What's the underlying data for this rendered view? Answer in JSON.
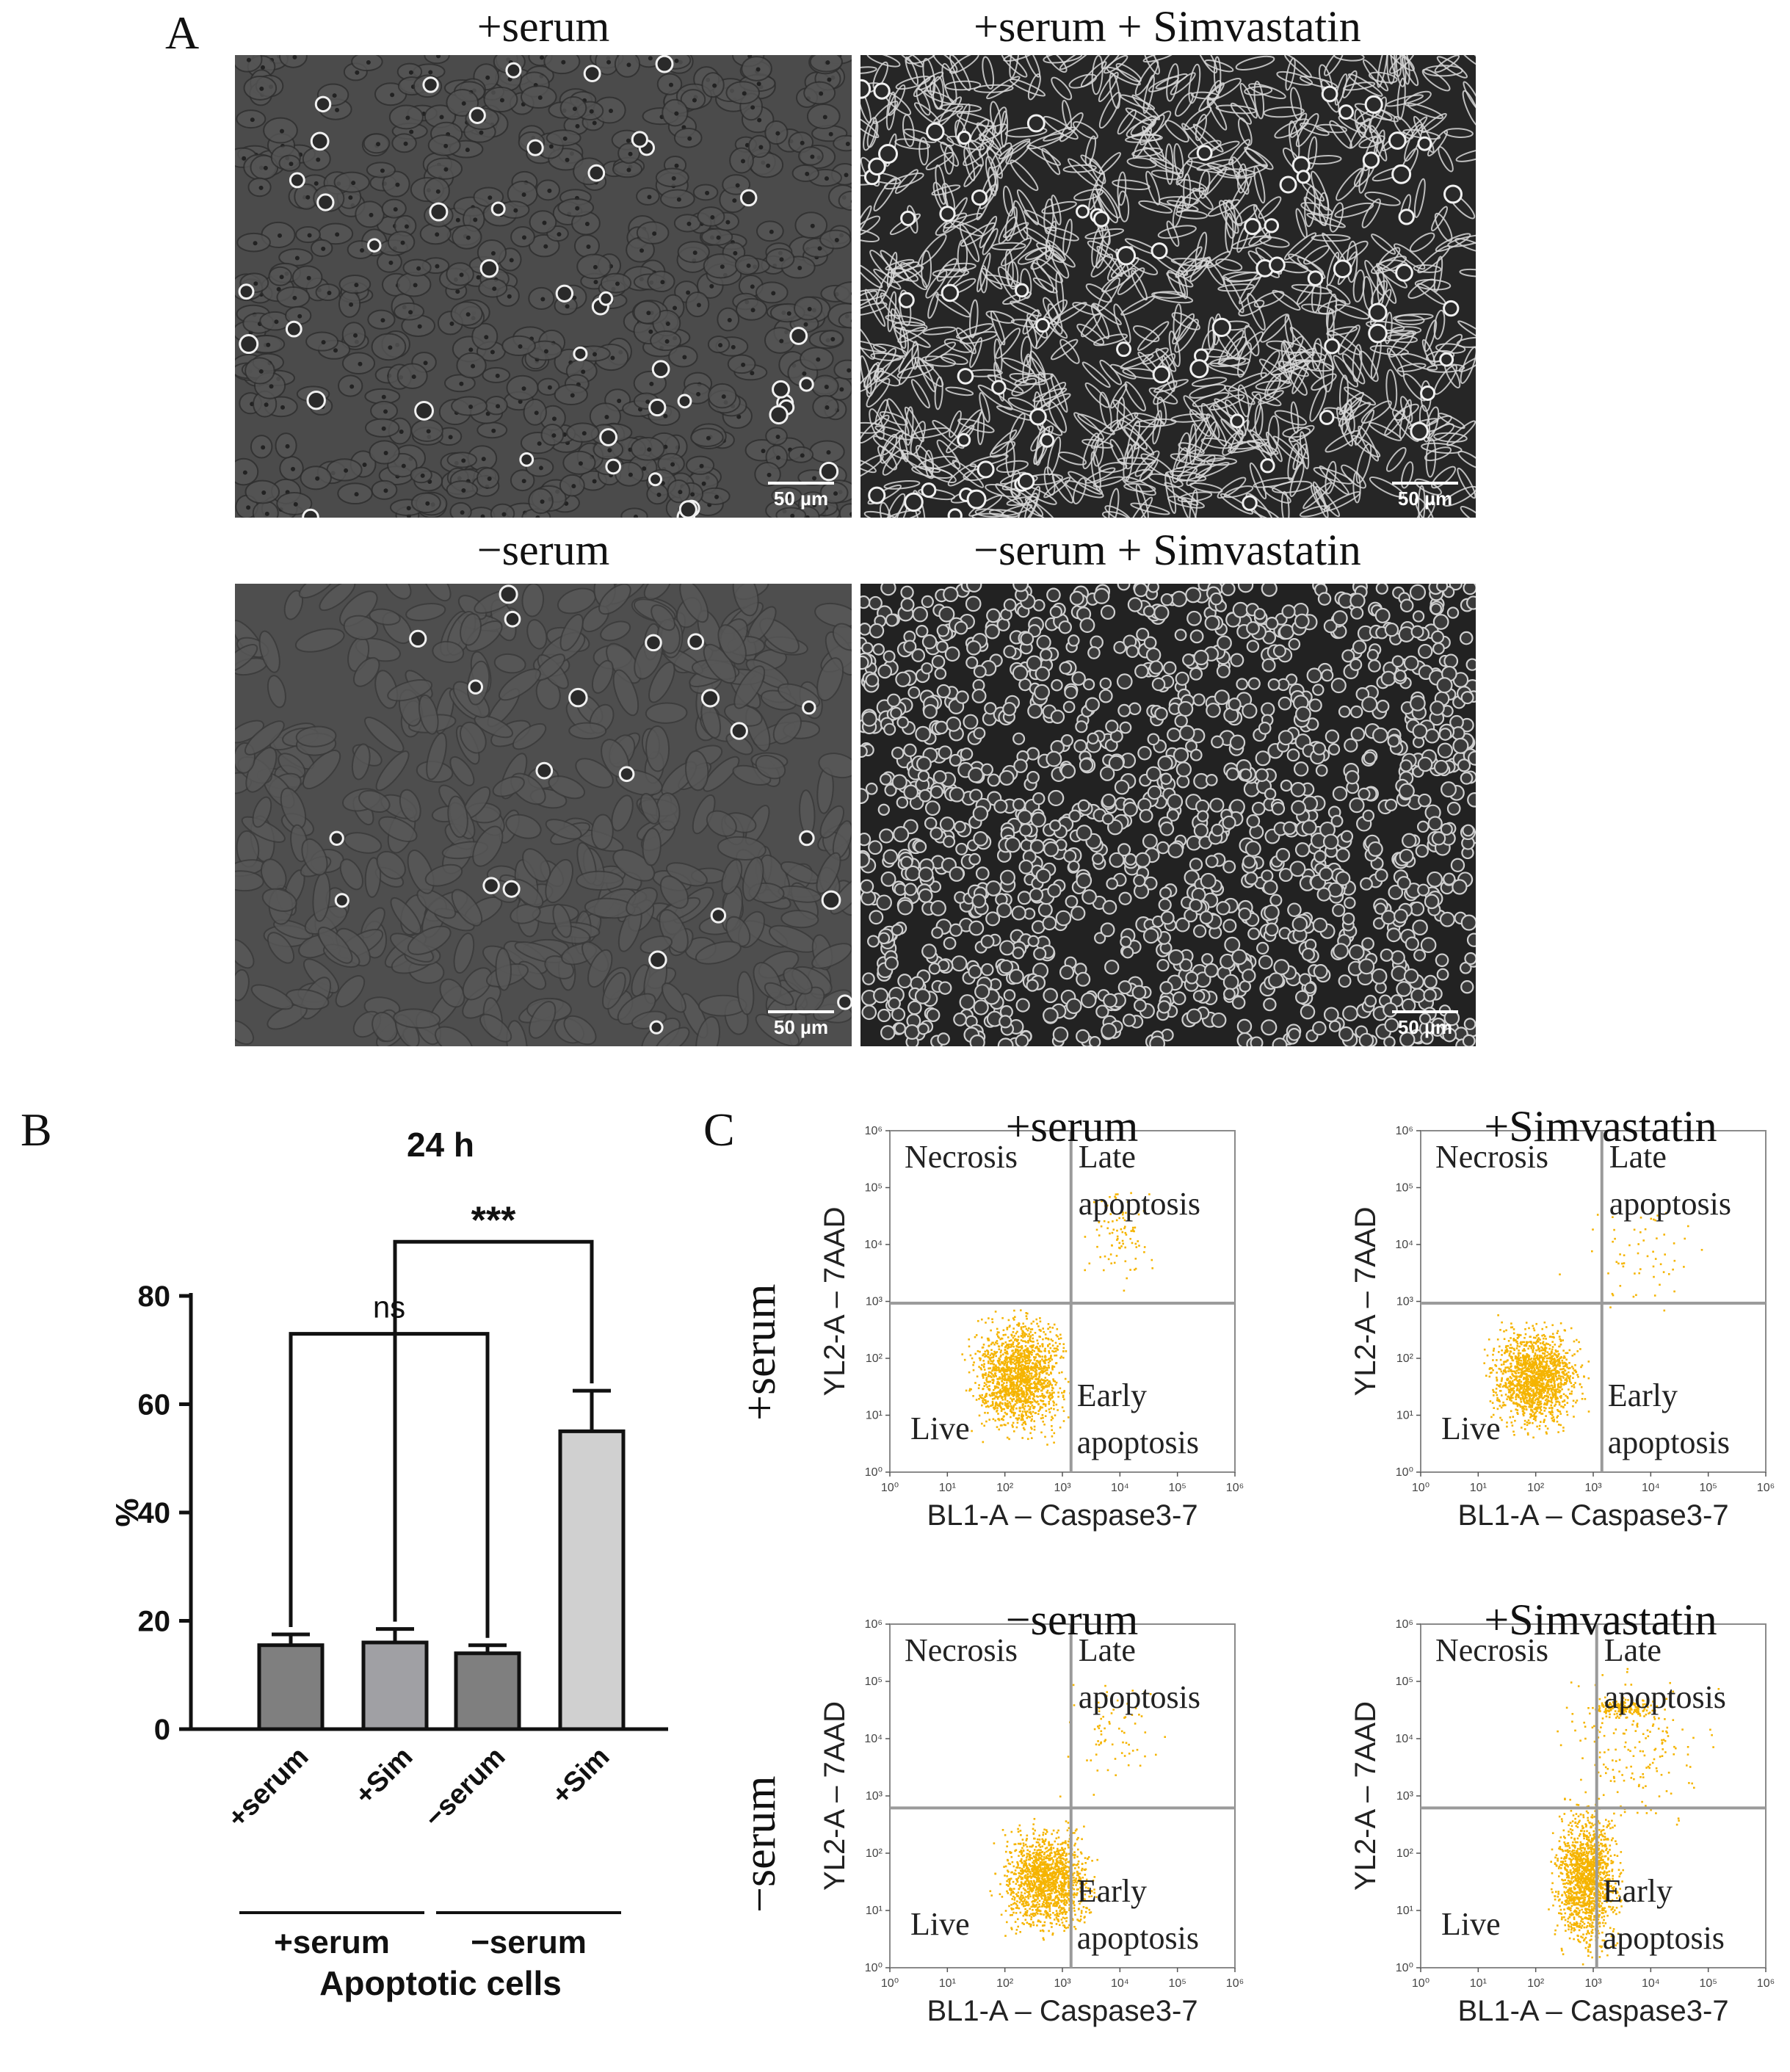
{
  "panel_a": {
    "letter": "A",
    "images": [
      {
        "title": "+serum",
        "scale_label": "50 µm"
      },
      {
        "title": "+serum + Simvastatin",
        "scale_label": "50 µm"
      },
      {
        "title": "−serum",
        "scale_label": "50 µm"
      },
      {
        "title": "−serum + Simvastatin",
        "scale_label": "50 µm"
      }
    ]
  },
  "panel_b": {
    "letter": "B",
    "chart_data": {
      "type": "bar",
      "title": "24 h",
      "ylabel": "%",
      "xlabel": "Apoptotic cells",
      "ylim": [
        0,
        80
      ],
      "yticks": [
        "0",
        "20",
        "40",
        "60",
        "80"
      ],
      "categories": [
        "+serum",
        "+Sim",
        "−serum",
        "+Sim"
      ],
      "values": [
        15.5,
        16,
        14,
        55
      ],
      "errors": [
        2,
        2.5,
        1.5,
        7.5
      ],
      "bar_colors": [
        "#7f7f7f",
        "#a0a0a4",
        "#7f7f7f",
        "#d0d0d0"
      ],
      "groups": [
        {
          "label": "+serum",
          "categories": [
            0,
            1
          ]
        },
        {
          "label": "−serum",
          "categories": [
            2,
            3
          ]
        }
      ],
      "significance": [
        {
          "label": "ns",
          "from": 0,
          "to": 2,
          "level": 73
        },
        {
          "label": "***",
          "from": 1,
          "to": 3,
          "level": 90
        }
      ]
    }
  },
  "panel_c": {
    "letter": "C",
    "row_labels": [
      "+serum",
      "−serum"
    ],
    "point_color": "#f5b400",
    "line_color": "#9a9a9a",
    "plots": [
      {
        "title": "+serum",
        "xlabel": "BL1-A – Caspase3-7",
        "ylabel": "YL2-A – 7AAD",
        "quadrants": {
          "tl": "Necrosis",
          "tr": "Late apoptosis",
          "bl": "Live",
          "br": "Early apoptosis"
        },
        "ticks": [
          "10⁰",
          "10¹",
          "10²",
          "10³",
          "10⁴",
          "10⁵",
          "10⁶"
        ]
      },
      {
        "title": "+Simvastatin",
        "xlabel": "BL1-A – Caspase3-7",
        "ylabel": "YL2-A – 7AAD",
        "quadrants": {
          "tl": "Necrosis",
          "tr": "Late apoptosis",
          "bl": "Live",
          "br": "Early apoptosis"
        },
        "ticks": [
          "10⁰",
          "10¹",
          "10²",
          "10³",
          "10⁴",
          "10⁵",
          "10⁶"
        ]
      },
      {
        "title": "−serum",
        "xlabel": "BL1-A – Caspase3-7",
        "ylabel": "YL2-A – 7AAD",
        "quadrants": {
          "tl": "Necrosis",
          "tr": "Late apoptosis",
          "bl": "Live",
          "br": "Early apoptosis"
        },
        "ticks": [
          "10⁰",
          "10¹",
          "10²",
          "10³",
          "10⁴",
          "10⁵",
          "10⁶"
        ]
      },
      {
        "title": "+Simvastatin",
        "xlabel": "BL1-A – Caspase3-7",
        "ylabel": "YL2-A – 7AAD",
        "quadrants": {
          "tl": "Necrosis",
          "tr": "Late apoptosis",
          "bl": "Live",
          "br": "Early apoptosis"
        },
        "ticks": [
          "10⁰",
          "10¹",
          "10²",
          "10³",
          "10⁴",
          "10⁵",
          "10⁶"
        ]
      }
    ]
  }
}
